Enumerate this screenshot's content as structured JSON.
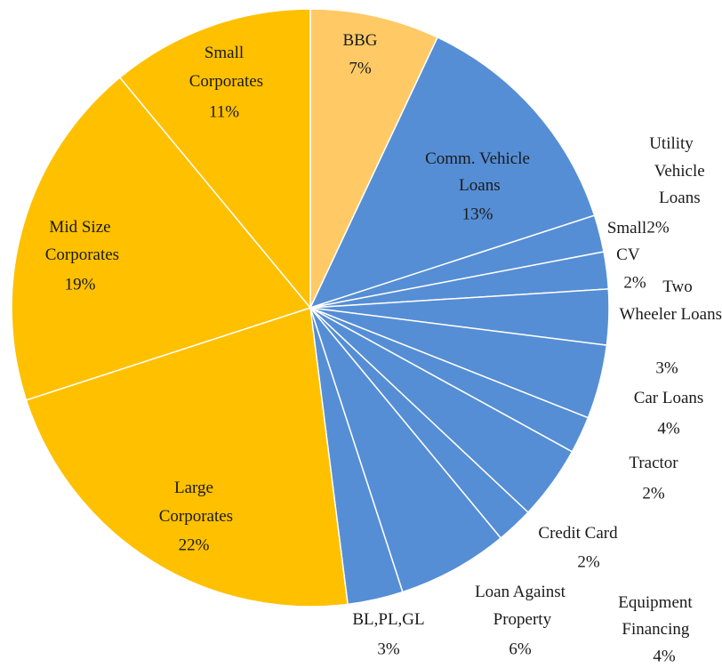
{
  "chart_data": {
    "type": "pie",
    "categories": [
      "BBG",
      "Comm. Vehicle Loans",
      "Utility Vehicle Loans",
      "Small CV",
      "Two Wheeler Loans",
      "Car Loans",
      "Tractor",
      "Equipment Financing",
      "Credit Card",
      "Loan Against Property",
      "BL,PL,GL",
      "Large Corporates",
      "Mid Size Corporates",
      "Small Corporates"
    ],
    "values": [
      7,
      13,
      2,
      2,
      3,
      4,
      2,
      4,
      2,
      6,
      3,
      22,
      19,
      11
    ],
    "value_labels": [
      "7%",
      "13%",
      "2%",
      "2%",
      "3%",
      "4%",
      "2%",
      "4%",
      "2%",
      "6%",
      "3%",
      "22%",
      "19%",
      "11%"
    ],
    "colors": [
      "#ffca66",
      "#558ed5",
      "#558ed5",
      "#558ed5",
      "#558ed5",
      "#558ed5",
      "#558ed5",
      "#558ed5",
      "#558ed5",
      "#558ed5",
      "#558ed5",
      "#ffc000",
      "#ffc000",
      "#ffc000"
    ]
  }
}
